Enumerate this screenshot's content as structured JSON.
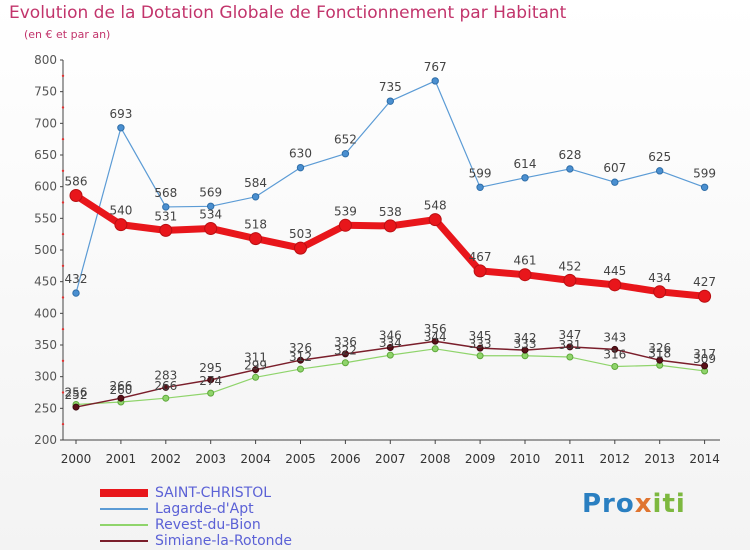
{
  "header": {
    "title": "Evolution de la Dotation Globale de Fonctionnement par Habitant",
    "subtitle": "(en € et par an)"
  },
  "brand": {
    "part1": "Pro",
    "part2": "x",
    "part3": "iti"
  },
  "colors": {
    "title": "#c2346b",
    "legend_text": "#5b61d6",
    "axis": "#555555",
    "grid": "#ffffff"
  },
  "chart_data": {
    "type": "line",
    "title": "Evolution de la Dotation Globale de Fonctionnement par Habitant",
    "subtitle": "(en € et par an)",
    "x": [
      "2000",
      "2001",
      "2002",
      "2003",
      "2004",
      "2005",
      "2006",
      "2007",
      "2008",
      "2009",
      "2010",
      "2011",
      "2012",
      "2013",
      "2014"
    ],
    "ylim": [
      200,
      800
    ],
    "yticks": [
      200,
      250,
      300,
      350,
      400,
      450,
      500,
      550,
      600,
      650,
      700,
      750,
      800
    ],
    "grid": false,
    "legend_position": "bottom-left",
    "series": [
      {
        "name": "SAINT-CHRISTOL",
        "color": "#e8161b",
        "values": [
          586,
          540,
          531,
          534,
          518,
          503,
          539,
          538,
          548,
          467,
          461,
          452,
          445,
          434,
          427
        ],
        "labels": [
          "586",
          "540",
          "531",
          "534",
          "518",
          "503",
          "539",
          "538",
          "548",
          "467",
          "461",
          "452",
          "445",
          "434",
          "427"
        ]
      },
      {
        "name": "Lagarde-d'Apt",
        "color": "#5b9bd5",
        "values": [
          432,
          693,
          568,
          569,
          584,
          630,
          652,
          735,
          767,
          599,
          614,
          628,
          607,
          625,
          599
        ],
        "labels": [
          "432",
          "693",
          "568",
          "569",
          "584",
          "630",
          "652",
          "735",
          "767",
          "599",
          "614",
          "628",
          "607",
          "625",
          "599"
        ]
      },
      {
        "name": "Revest-du-Bion",
        "color": "#8fd46b",
        "values": [
          256,
          260,
          266,
          274,
          299,
          312,
          322,
          334,
          344,
          333,
          333,
          331,
          316,
          318,
          309
        ],
        "labels": [
          "256",
          "260",
          "266",
          "274",
          "299",
          "312",
          "322",
          "334",
          "344",
          "333",
          "333",
          "331",
          "316",
          "318",
          "309"
        ]
      },
      {
        "name": "Simiane-la-Rotonde",
        "color": "#7a1e2b",
        "values": [
          252,
          266,
          283,
          295,
          311,
          326,
          336,
          346,
          356,
          345,
          342,
          347,
          343,
          326,
          317
        ],
        "labels": [
          "252",
          "266",
          "283",
          "295",
          "311",
          "326",
          "336",
          "346",
          "356",
          "345",
          "342",
          "347",
          "343",
          "326",
          "317"
        ]
      }
    ]
  }
}
